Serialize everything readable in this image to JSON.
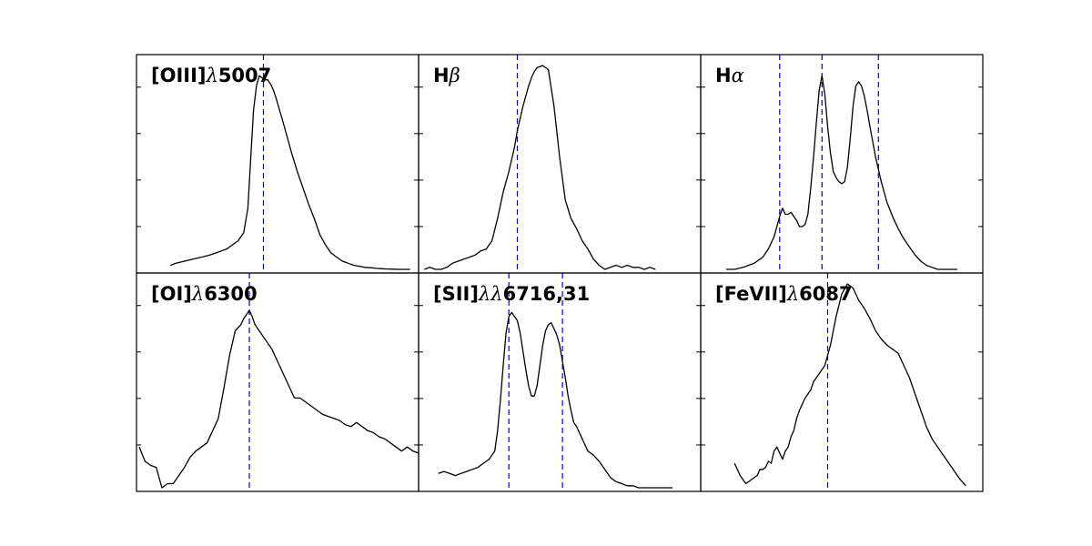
{
  "chart_data": [
    {
      "type": "line",
      "title": "[OIII]λ5007",
      "title_parts": [
        {
          "text": "[OIII]",
          "italic": false
        },
        {
          "text": "λ",
          "italic": true
        },
        {
          "text": "5007",
          "italic": false
        }
      ],
      "xlim": [
        0,
        100
      ],
      "ylim": [
        0,
        100
      ],
      "x": [
        12,
        14,
        17,
        20,
        23,
        26,
        28,
        30,
        32,
        34,
        36,
        38,
        39.5,
        40.5,
        41.5,
        42.5,
        43.5,
        44.5,
        45.5,
        46.5,
        47.5,
        48.5,
        49.5,
        50.5,
        52,
        53,
        54,
        55,
        57,
        59,
        61,
        63,
        65,
        67,
        69,
        71,
        73,
        75,
        77,
        79,
        81,
        83,
        85,
        87,
        89,
        91,
        93,
        95,
        97
      ],
      "y": [
        2,
        3,
        4,
        5,
        6,
        7,
        8,
        9,
        10,
        12,
        14,
        18,
        30,
        55,
        78,
        90,
        95,
        94,
        93,
        93,
        91,
        88,
        84,
        79,
        72,
        67,
        62,
        57,
        48,
        40,
        32,
        25,
        17,
        12,
        8,
        6,
        4,
        3,
        2,
        1.5,
        1,
        0.8,
        0.5,
        0.3,
        0.2,
        0.1,
        0,
        0,
        0
      ],
      "vlines": [
        45
      ]
    },
    {
      "type": "line",
      "title": "Hβ",
      "title_parts": [
        {
          "text": "H",
          "italic": false
        },
        {
          "text": "β",
          "italic": true
        }
      ],
      "xlim": [
        0,
        100
      ],
      "ylim": [
        0,
        100
      ],
      "x": [
        2,
        4,
        6,
        8,
        10,
        12,
        14,
        16,
        18,
        20,
        22,
        24,
        26,
        28,
        30,
        32,
        34,
        35,
        36,
        37,
        38,
        39,
        40,
        41,
        42,
        44,
        46,
        48,
        50,
        52,
        54,
        56,
        58,
        60,
        62,
        64,
        66,
        68,
        70,
        72,
        74,
        76,
        78,
        80,
        82,
        84
      ],
      "y": [
        0,
        1,
        0,
        0,
        1,
        3,
        4,
        5,
        6,
        7,
        9,
        10,
        14,
        25,
        38,
        48,
        60,
        68,
        74,
        80,
        85,
        90,
        94,
        97,
        99,
        100,
        98,
        80,
        55,
        34,
        25,
        20,
        14,
        10,
        5,
        2,
        0,
        1,
        2,
        1,
        2,
        1,
        1,
        0,
        1,
        0
      ],
      "vlines": [
        35
      ]
    },
    {
      "type": "line",
      "title": "Hα",
      "title_parts": [
        {
          "text": "H",
          "italic": false
        },
        {
          "text": "α",
          "italic": true
        }
      ],
      "xlim": [
        0,
        100
      ],
      "ylim": [
        0,
        100
      ],
      "x": [
        9,
        12,
        15,
        17,
        19,
        20,
        22,
        24,
        26,
        28,
        29,
        30,
        31,
        32,
        33,
        34,
        35,
        36,
        37,
        38,
        39,
        40,
        41,
        42,
        43,
        44,
        45,
        46,
        47,
        48,
        49,
        50,
        51,
        52,
        53,
        54,
        55,
        56,
        57,
        58,
        59,
        60,
        62,
        64,
        66,
        68,
        70,
        72,
        74,
        76,
        78,
        80,
        82,
        84,
        86,
        88,
        91
      ],
      "y": [
        0,
        0,
        1,
        2,
        3,
        4,
        6,
        10,
        16,
        26,
        30,
        27,
        27,
        28,
        26,
        24,
        21,
        21,
        22,
        27,
        40,
        55,
        72,
        88,
        95,
        86,
        70,
        57,
        48,
        45,
        43,
        42,
        43,
        50,
        64,
        80,
        90,
        92,
        90,
        85,
        78,
        70,
        55,
        43,
        33,
        26,
        20,
        15,
        11,
        7,
        4,
        2,
        1,
        0,
        0,
        0,
        0
      ],
      "vlines": [
        28,
        43,
        63
      ]
    },
    {
      "type": "line",
      "title": "[OI]λ6300",
      "title_parts": [
        {
          "text": "[OI]",
          "italic": false
        },
        {
          "text": "λ",
          "italic": true
        },
        {
          "text": "6300",
          "italic": false
        }
      ],
      "xlim": [
        0,
        100
      ],
      "ylim": [
        0,
        100
      ],
      "x": [
        1,
        3,
        5,
        7,
        9,
        11,
        13,
        15,
        17,
        19,
        21,
        23,
        25,
        27,
        29,
        31,
        33,
        35,
        37,
        38,
        39,
        40,
        41,
        42,
        44,
        46,
        48,
        50,
        52,
        54,
        56,
        58,
        60,
        62,
        64,
        66,
        68,
        70,
        72,
        74,
        76,
        78,
        80,
        82,
        84,
        86,
        88,
        90,
        92,
        94,
        96,
        98,
        100
      ],
      "y": [
        20,
        13,
        11,
        10,
        0,
        2,
        2,
        6,
        10,
        15,
        18,
        20,
        22,
        28,
        34,
        49,
        65,
        77,
        80,
        83,
        85,
        87,
        84,
        80,
        76,
        72,
        68,
        62,
        56,
        50,
        44,
        44,
        42,
        40,
        38,
        36,
        35,
        34,
        33,
        31,
        30,
        32,
        30,
        28,
        27,
        25,
        24,
        22,
        20,
        18,
        20,
        18,
        17
      ],
      "vlines": [
        40
      ]
    },
    {
      "type": "line",
      "title": "[SII]λλ6716,31",
      "title_parts": [
        {
          "text": "[SII]",
          "italic": false
        },
        {
          "text": "λλ",
          "italic": true
        },
        {
          "text": "6716,31",
          "italic": false
        }
      ],
      "xlim": [
        0,
        100
      ],
      "ylim": [
        0,
        100
      ],
      "x": [
        7,
        9,
        11,
        13,
        15,
        17,
        19,
        21,
        23,
        25,
        27,
        28,
        29,
        30,
        31,
        32,
        33,
        34,
        35,
        36,
        37,
        38,
        39,
        40,
        41,
        42,
        43,
        44,
        45,
        46,
        47,
        48,
        49,
        50,
        51,
        52,
        53,
        54,
        55,
        56,
        57,
        58,
        59,
        60,
        62,
        64,
        66,
        68,
        70,
        72,
        74,
        76,
        78,
        80,
        82,
        84,
        86,
        88,
        90
      ],
      "y": [
        7,
        8,
        7,
        6,
        7,
        8,
        9,
        10,
        12,
        14,
        18,
        28,
        43,
        60,
        76,
        84,
        86,
        84,
        82,
        76,
        67,
        58,
        50,
        45,
        45,
        50,
        60,
        70,
        77,
        80,
        81,
        78,
        75,
        70,
        62,
        54,
        45,
        38,
        32,
        30,
        27,
        24,
        21,
        18,
        16,
        13,
        9,
        5,
        3,
        2,
        1,
        1,
        0,
        0,
        0,
        0,
        0,
        0,
        0
      ],
      "vlines": [
        32,
        51
      ]
    },
    {
      "type": "line",
      "title": "[FeVII]λ6087",
      "title_parts": [
        {
          "text": "[FeVII]",
          "italic": false
        },
        {
          "text": "λ",
          "italic": true
        },
        {
          "text": "6087",
          "italic": false
        }
      ],
      "xlim": [
        0,
        100
      ],
      "ylim": [
        0,
        100
      ],
      "x": [
        12,
        14,
        16,
        18,
        20,
        21,
        22,
        23,
        24,
        25,
        26,
        27,
        28,
        29,
        30,
        31,
        32,
        33,
        34,
        35,
        36,
        37,
        38,
        39,
        40,
        42,
        44,
        46,
        48,
        50,
        52,
        54,
        56,
        58,
        60,
        62,
        64,
        66,
        68,
        70,
        72,
        74,
        76,
        78,
        80,
        82,
        84,
        86,
        88,
        90,
        92,
        94
      ],
      "y": [
        12,
        6,
        2,
        4,
        6,
        9,
        9,
        10,
        13,
        12,
        18,
        20,
        17,
        14,
        18,
        20,
        25,
        28,
        34,
        38,
        41,
        44,
        46,
        48,
        52,
        56,
        60,
        70,
        84,
        95,
        100,
        98,
        92,
        88,
        83,
        77,
        73,
        70,
        68,
        66,
        60,
        54,
        46,
        38,
        30,
        24,
        20,
        16,
        12,
        8,
        4,
        1
      ],
      "vlines": [
        45
      ]
    }
  ]
}
